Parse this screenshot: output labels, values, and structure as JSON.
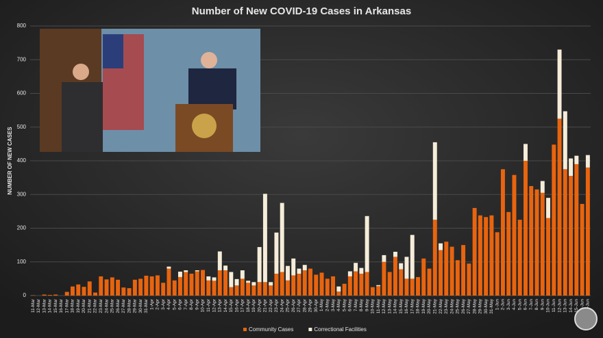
{
  "chart_data": {
    "type": "stacked_bar",
    "title": "Number of New COVID-19 Cases in Arkansas",
    "y_label": "NUMBER OF NEW CASES",
    "categories": [
      "11-Mar",
      "12-Mar",
      "13-Mar",
      "14-Mar",
      "15-Mar",
      "16-Mar",
      "17-Mar",
      "18-Mar",
      "19-Mar",
      "20-Mar",
      "21-Mar",
      "22-Mar",
      "23-Mar",
      "24-Mar",
      "25-Mar",
      "26-Mar",
      "27-Mar",
      "28-Mar",
      "29-Mar",
      "30-Mar",
      "31-Mar",
      "1-Apr",
      "2-Apr",
      "3-Apr",
      "4-Apr",
      "5-Apr",
      "6-Apr",
      "7-Apr",
      "8-Apr",
      "9-Apr",
      "10-Apr",
      "11-Apr",
      "12-Apr",
      "13-Apr",
      "14-Apr",
      "15-Apr",
      "16-Apr",
      "17-Apr",
      "18-Apr",
      "19-Apr",
      "20-Apr",
      "21-Apr",
      "22-Apr",
      "23-Apr",
      "24-Apr",
      "25-Apr",
      "26-Apr",
      "27-Apr",
      "28-Apr",
      "29-Apr",
      "30-Apr",
      "1-May",
      "2-May",
      "3-May",
      "4-May",
      "5-May",
      "6-May",
      "7-May",
      "8-May",
      "9-May",
      "10-May",
      "11-May",
      "12-May",
      "13-May",
      "14-May",
      "15-May",
      "16-May",
      "17-May",
      "18-May",
      "19-May",
      "20-May",
      "21-May",
      "22-May",
      "23-May",
      "24-May",
      "25-May",
      "26-May",
      "27-May",
      "28-May",
      "29-May",
      "30-May",
      "31-May",
      "1-Jun",
      "2-Jun",
      "3-Jun",
      "4-Jun",
      "5-Jun",
      "6-Jun",
      "7-Jun",
      "8-Jun",
      "9-Jun",
      "10-Jun",
      "11-Jun",
      "12-Jun",
      "13-Jun",
      "14-Jun",
      "15-Jun",
      "16-Jun",
      "17-Jun"
    ],
    "series": [
      {
        "name": "Community Cases",
        "color": "#e8640f",
        "values": [
          1,
          0,
          3,
          2,
          3,
          0,
          11,
          27,
          33,
          26,
          42,
          9,
          57,
          48,
          54,
          47,
          24,
          22,
          47,
          50,
          59,
          57,
          60,
          38,
          80,
          45,
          55,
          70,
          65,
          72,
          76,
          45,
          44,
          75,
          75,
          25,
          30,
          50,
          38,
          30,
          40,
          40,
          30,
          65,
          70,
          45,
          60,
          65,
          75,
          80,
          62,
          68,
          50,
          57,
          12,
          35,
          57,
          72,
          65,
          70,
          25,
          28,
          100,
          70,
          115,
          78,
          50,
          50,
          55,
          110,
          80,
          225,
          135,
          160,
          145,
          105,
          150,
          95,
          260,
          238,
          233,
          238,
          188,
          375,
          248,
          358,
          225,
          400,
          325,
          315,
          305,
          230,
          448,
          525,
          375,
          355,
          390,
          272,
          380
        ]
      },
      {
        "name": "Correctional Facilities",
        "color": "#f5ecd9",
        "values": [
          0,
          0,
          0,
          0,
          0,
          0,
          0,
          0,
          0,
          0,
          0,
          0,
          0,
          0,
          0,
          0,
          0,
          0,
          0,
          0,
          0,
          0,
          0,
          0,
          6,
          0,
          16,
          5,
          0,
          3,
          0,
          12,
          10,
          56,
          14,
          45,
          19,
          25,
          6,
          10,
          104,
          262,
          10,
          122,
          205,
          43,
          50,
          15,
          16,
          0,
          0,
          0,
          0,
          0,
          15,
          0,
          15,
          25,
          17,
          166,
          0,
          3,
          20,
          0,
          15,
          18,
          65,
          130,
          0,
          0,
          0,
          230,
          20,
          0,
          0,
          0,
          0,
          0,
          0,
          0,
          0,
          0,
          0,
          0,
          0,
          0,
          0,
          50,
          0,
          0,
          35,
          60,
          0,
          205,
          172,
          52,
          25,
          0,
          37
        ]
      }
    ],
    "ylim": [
      0,
      800
    ],
    "yticks": [
      0,
      100,
      200,
      300,
      400,
      500,
      600,
      700,
      800
    ],
    "grid": true,
    "legend": "bottom"
  }
}
